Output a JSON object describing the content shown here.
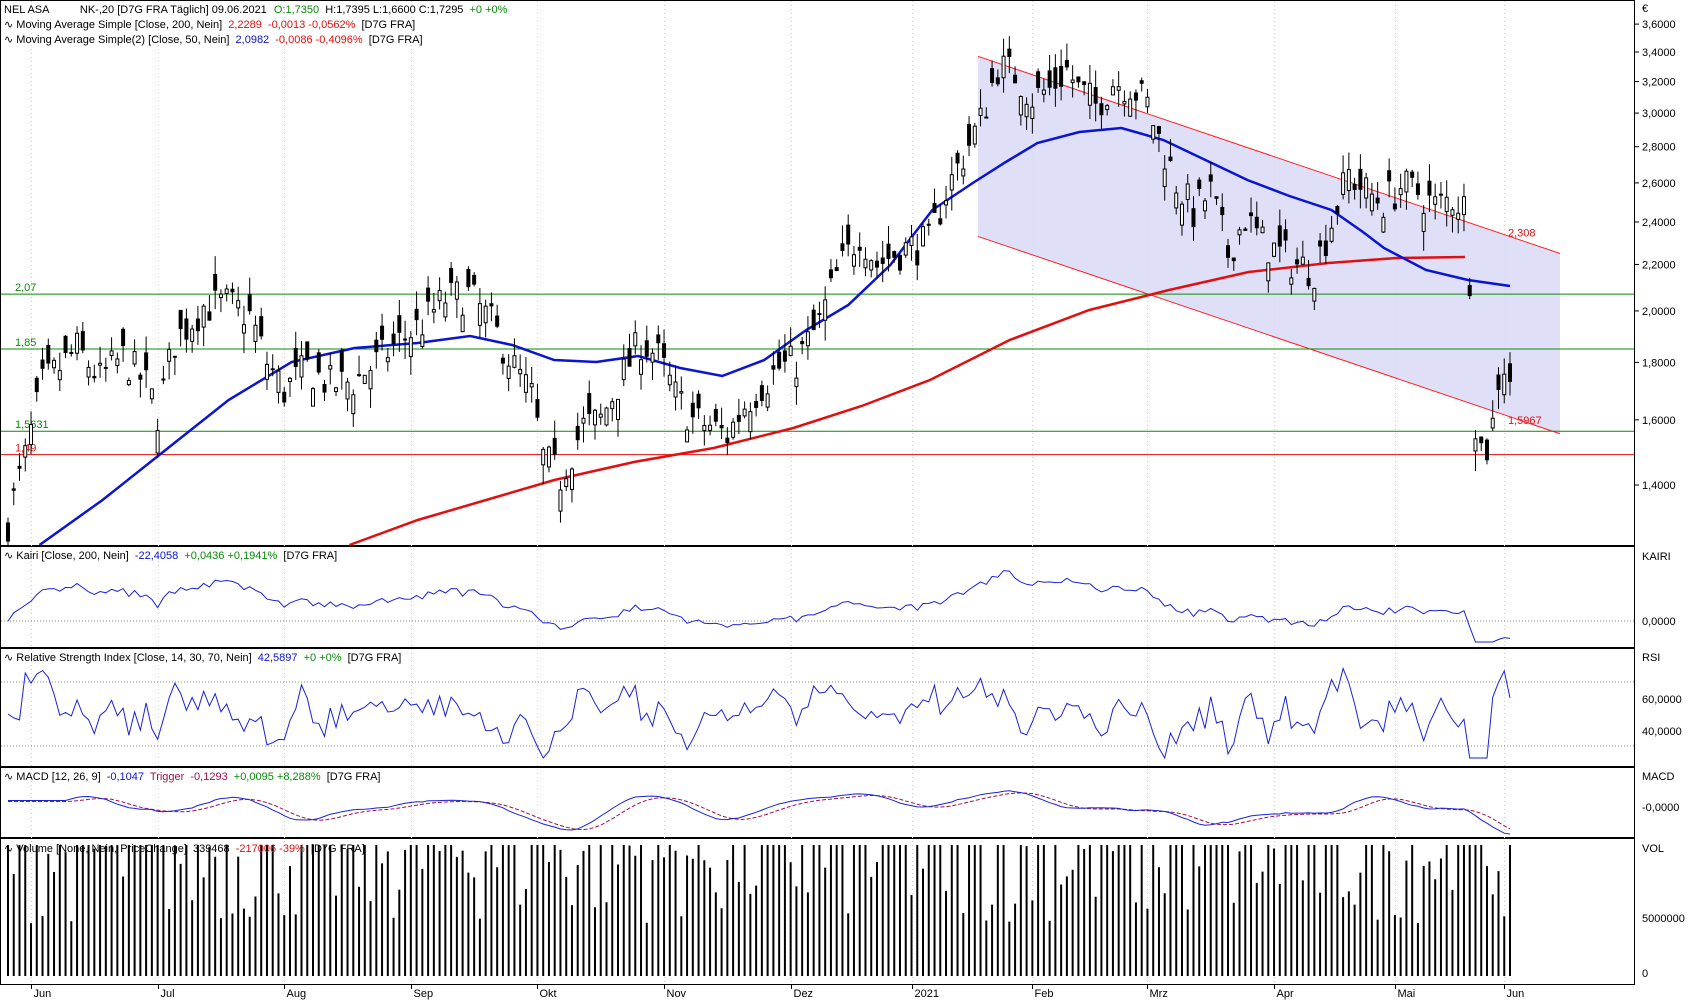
{
  "header": {
    "symbol": "NEL ASA",
    "main_info": "NK-,20 [D7G FRA  Täglich] 09.06.2021",
    "ohlc_open": "O:1,7350",
    "ohlc_rest": "H:1,7395 L:1,6600 C:1,7295",
    "ohlc_change": "+0 +0%",
    "sma200_label": "Moving Average Simple [Close, 200, Nein]",
    "sma200_value": "2,2289",
    "sma200_change": "-0,0013 -0,0562%",
    "sma200_src": "[D7G FRA]",
    "sma50_label": "Moving Average Simple(2) [Close, 50, Nein]",
    "sma50_value": "2,0982",
    "sma50_change": "-0,0086 -0,4096%",
    "sma50_src": "[D7G FRA]",
    "kairi_label": "Kairi [Close, 200, Nein]",
    "kairi_value": "-22,4058",
    "kairi_change": "+0,0436 +0,1941%",
    "kairi_src": "[D7G FRA]",
    "rsi_label": "Relative Strength Index [Close, 14, 30, 70, Nein]",
    "rsi_value": "42,5897",
    "rsi_change": "+0 +0%",
    "rsi_src": "[D7G FRA]",
    "macd_label": "MACD [12, 26, 9]",
    "macd_value": "-0,1047",
    "macd_trigger": "Trigger",
    "macd_trigger_value": "-0,1293",
    "macd_change": "+0,0095 +8,288%",
    "macd_src": "[D7G FRA]",
    "vol_label": "Volume [None, Nein, PriceChange]",
    "vol_value": "339468",
    "vol_change": "-217006 -39%",
    "vol_src": "[D7G FRA]"
  },
  "axis_labels": {
    "currency": "€",
    "kairi": "KAIRI",
    "rsi": "RSI",
    "macd": "MACD",
    "vol": "VOL"
  },
  "colors": {
    "up": "#000000",
    "sma50": "#0a14d2",
    "sma200": "#e01010",
    "channel_fill": "#d9dbf7",
    "channel_line": "#ff2020",
    "support_green": "#0a8a0a",
    "support_red": "#e01010",
    "indicator": "#1a22d8",
    "trigger": "#a01050",
    "volume": "#000000"
  },
  "chart_data": {
    "type": "candlestick",
    "x_labels": [
      "Jun",
      "Jul",
      "Aug",
      "Sep",
      "Okt",
      "Nov",
      "Dez",
      "2021",
      "Feb",
      "Mrz",
      "Apr",
      "Mai",
      "Jun"
    ],
    "price_axis": {
      "ticks": [
        "3,6000",
        "3,4000",
        "3,2000",
        "3,0000",
        "2,8000",
        "2,6000",
        "2,4000",
        "2,2000",
        "2,0000",
        "1,8000",
        "1,6000",
        "1,4000"
      ],
      "ylim": [
        1.2,
        3.7
      ],
      "scale": "log"
    },
    "levels": [
      {
        "label": "2,07",
        "value": 2.07,
        "color": "green"
      },
      {
        "label": "1,85",
        "value": 1.85,
        "color": "green"
      },
      {
        "label": "1,5631",
        "value": 1.5631,
        "color": "green"
      },
      {
        "label": "1,49",
        "value": 1.49,
        "color": "red"
      }
    ],
    "channel": {
      "upper_start": 3.37,
      "upper_end": 2.25,
      "lower_start": 2.33,
      "lower_end": 1.555,
      "upper_label": "2,308",
      "lower_label": "1,5967"
    },
    "kairi_axis": {
      "ticks": [
        "0,0000"
      ]
    },
    "rsi_axis": {
      "ticks": [
        "60,0000",
        "40,0000"
      ],
      "levels": [
        70,
        30
      ]
    },
    "macd_axis": {
      "ticks": [
        "-0,0000"
      ]
    },
    "volume_axis": {
      "ticks": [
        "5000000",
        "0"
      ]
    },
    "series_notes": "candles and indicators estimated from the figure; approx. 260 trading days Jun 2020 – Jun 2021"
  }
}
